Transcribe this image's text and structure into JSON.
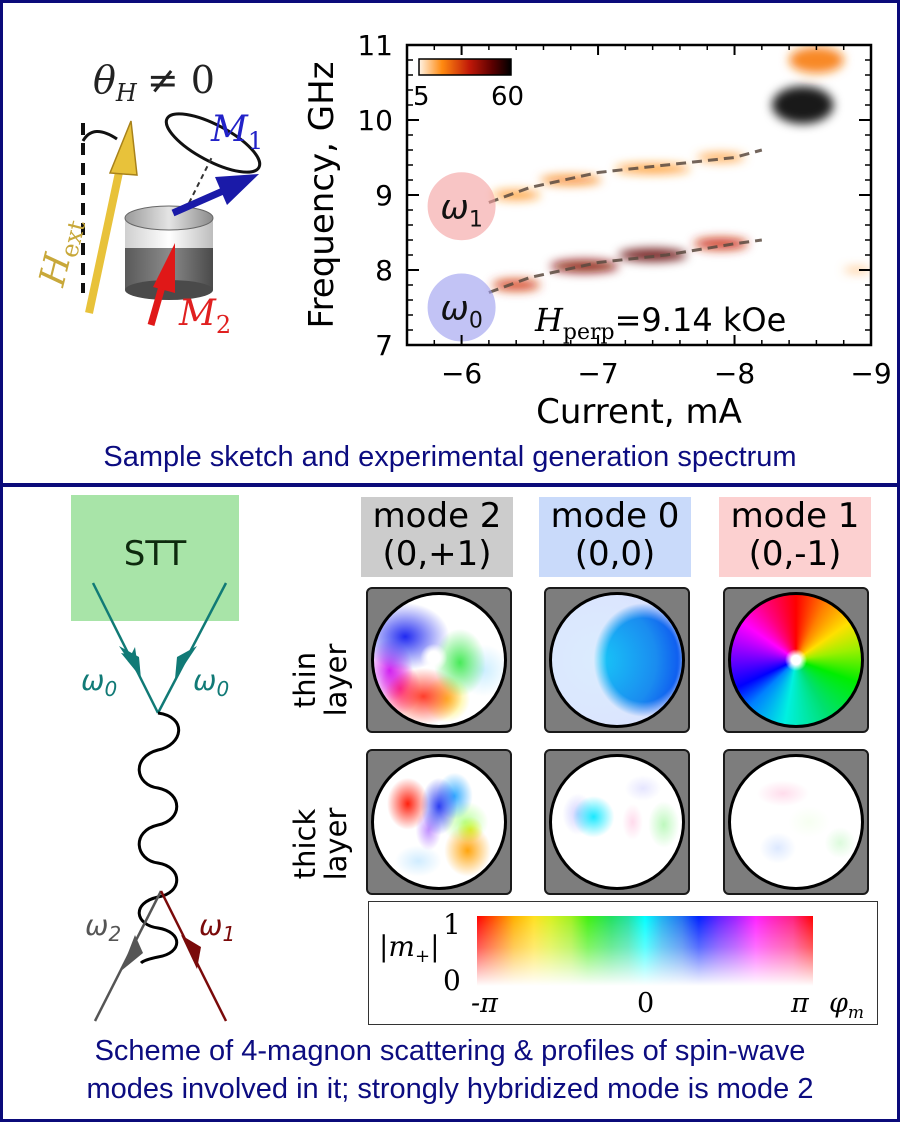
{
  "top_panel": {
    "sketch": {
      "theta_label": "θ",
      "theta_sub": "H",
      "theta_rel": "≠ 0",
      "h_label": "H",
      "h_sub": "ext",
      "m1_label": "M",
      "m1_sub": "1",
      "m2_label": "M",
      "m2_sub": "2",
      "colors": {
        "h_arrow": "#e8c23a",
        "m1_arrow": "#1a1aa8",
        "m2_arrow": "#e01818",
        "m1_text": "#2222c8",
        "m2_text": "#e02020",
        "h_text": "#c8a83a"
      }
    },
    "caption": "Sample sketch and experimental generation spectrum"
  },
  "chart_data": {
    "type": "heatmap",
    "title": "",
    "xlabel": "Current, mA",
    "ylabel": "Frequency, GHz",
    "xlim": [
      -5.6,
      -9
    ],
    "ylim": [
      7,
      11
    ],
    "xticks": [
      -6,
      -7,
      -8,
      -9
    ],
    "xtick_labels": [
      "−6",
      "−7",
      "−8",
      "−9"
    ],
    "yticks": [
      7,
      8,
      9,
      10,
      11
    ],
    "ytick_labels": [
      "7",
      "8",
      "9",
      "10",
      "11"
    ],
    "colorbar": {
      "min": 5,
      "max": 60,
      "min_label": "5",
      "max_label": "60",
      "colormap": "gist_heat_r"
    },
    "annotation": {
      "symbol": "H",
      "sub": "perp",
      "text": "=9.14 kOe"
    },
    "markers": [
      {
        "label": "ω",
        "sub": "1",
        "x": -6.0,
        "y": 8.85,
        "color": "#f4a0a0"
      },
      {
        "label": "ω",
        "sub": "0",
        "x": -6.0,
        "y": 7.5,
        "color": "#9a9cf0"
      }
    ],
    "fit_lines": [
      {
        "name": "mode 1 fit",
        "x": [
          -6.2,
          -6.5,
          -7.0,
          -7.5,
          -8.0,
          -8.2
        ],
        "y": [
          8.9,
          9.1,
          9.3,
          9.4,
          9.5,
          9.6
        ]
      },
      {
        "name": "mode 0 fit",
        "x": [
          -6.2,
          -6.5,
          -7.0,
          -7.5,
          -8.0,
          -8.2
        ],
        "y": [
          7.7,
          7.9,
          8.1,
          8.2,
          8.35,
          8.4
        ]
      }
    ],
    "intensity_blobs": [
      {
        "x": -6.4,
        "y": 9.0,
        "w": 0.35,
        "h": 0.12,
        "v": 15
      },
      {
        "x": -6.8,
        "y": 9.2,
        "w": 0.45,
        "h": 0.12,
        "v": 18
      },
      {
        "x": -7.4,
        "y": 9.35,
        "w": 0.55,
        "h": 0.12,
        "v": 15
      },
      {
        "x": -7.9,
        "y": 9.5,
        "w": 0.35,
        "h": 0.12,
        "v": 12
      },
      {
        "x": -8.5,
        "y": 10.2,
        "w": 0.45,
        "h": 0.5,
        "v": 60
      },
      {
        "x": -8.6,
        "y": 10.8,
        "w": 0.4,
        "h": 0.35,
        "v": 18
      },
      {
        "x": -6.4,
        "y": 7.8,
        "w": 0.35,
        "h": 0.15,
        "v": 28
      },
      {
        "x": -6.9,
        "y": 8.05,
        "w": 0.5,
        "h": 0.17,
        "v": 42
      },
      {
        "x": -7.4,
        "y": 8.2,
        "w": 0.5,
        "h": 0.17,
        "v": 48
      },
      {
        "x": -7.9,
        "y": 8.35,
        "w": 0.4,
        "h": 0.16,
        "v": 30
      },
      {
        "x": -8.9,
        "y": 8.0,
        "w": 0.2,
        "h": 0.06,
        "v": 10
      }
    ]
  },
  "bottom_panel": {
    "diagram": {
      "source_label": "STT",
      "in_left": {
        "label": "ω",
        "sub": "0"
      },
      "in_right": {
        "label": "ω",
        "sub": "0"
      },
      "out_left": {
        "label": "ω",
        "sub": "2"
      },
      "out_right": {
        "label": "ω",
        "sub": "1"
      },
      "colors": {
        "source_box": "#a8e4a8",
        "incoming": "#117a76",
        "out_left": "#555555",
        "out_right": "#7a0a0a"
      }
    },
    "modes": [
      {
        "name": "mode 2",
        "index": "(0,+1)",
        "bg": "#cccccc"
      },
      {
        "name": "mode 0",
        "index": "(0,0)",
        "bg": "#c9dafa"
      },
      {
        "name": "mode 1",
        "index": "(0,-1)",
        "bg": "#fcd0d0"
      }
    ],
    "rows": [
      {
        "line1": "thin",
        "line2": "layer"
      },
      {
        "line1": "thick",
        "line2": "layer"
      }
    ],
    "colorscale": {
      "amp_symbol": "|m",
      "amp_sub": "+",
      "amp_close": "|",
      "amp_max": "1",
      "amp_min": "0",
      "phase_min": "-π",
      "phase_mid": "0",
      "phase_max": "π",
      "phase_symbol": "φ",
      "phase_sub": "m"
    },
    "caption_line1": "Scheme of 4-magnon scattering & profiles of spin-wave",
    "caption_line2": "modes involved in it; strongly hybridized mode is mode 2"
  }
}
